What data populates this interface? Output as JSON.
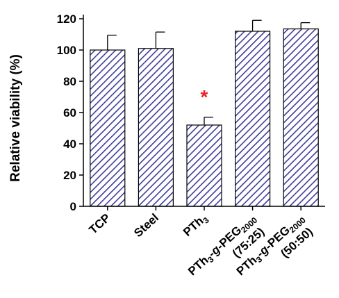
{
  "chart_data": {
    "type": "bar",
    "ylabel": "Relative viability (%)",
    "xlabel": "",
    "title": "",
    "ylim": [
      0,
      120
    ],
    "yticks": [
      "0",
      "20",
      "40",
      "60",
      "80",
      "100",
      "120"
    ],
    "categories": [
      {
        "main": "TCP"
      },
      {
        "main": "Steel"
      },
      {
        "main": "PTh",
        "sub": "3"
      },
      {
        "main": "PTh",
        "sub": "3",
        "mid": "-g-",
        "tail": "PEG",
        "tailsub": "2000",
        "note": "(75:25)"
      },
      {
        "main": "PTh",
        "sub": "3",
        "mid": "-g-",
        "tail": "PEG",
        "tailsub": "2000",
        "note": "(50:50)"
      }
    ],
    "values": [
      100,
      101,
      52,
      112,
      113.5
    ],
    "errors": [
      9.5,
      10.5,
      5,
      7,
      4
    ],
    "annotations": [
      {
        "category_index": 2,
        "text": "*",
        "color": "#e8232a"
      }
    ],
    "bar_color": "#3c3c9c",
    "bar_pattern": "diagonal-hatch"
  }
}
